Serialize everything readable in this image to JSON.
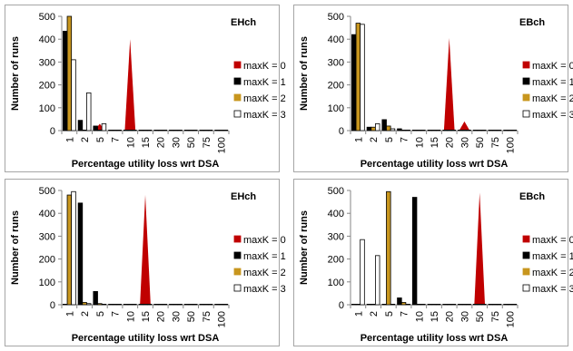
{
  "chart_data": [
    {
      "type": "bar",
      "title": "EHch",
      "xlabel": "Percentage utility loss wrt DSA",
      "ylabel": "Number of runs",
      "ylim": [
        0,
        500
      ],
      "yticks": [
        "0",
        "100",
        "200",
        "300",
        "400",
        "500"
      ],
      "categories": [
        "1",
        "2",
        "5",
        "7",
        "10",
        "15",
        "20",
        "30",
        "50",
        "75",
        "100"
      ],
      "legend_position": "right",
      "series": [
        {
          "name": "maxK = 0",
          "color": "#c00000",
          "style": "spike",
          "values": [
            0,
            0,
            30,
            0,
            400,
            0,
            0,
            0,
            0,
            0,
            0
          ]
        },
        {
          "name": "maxK = 1",
          "color": "#000000",
          "style": "bar",
          "values": [
            435,
            45,
            20,
            0,
            0,
            0,
            0,
            0,
            0,
            0,
            0
          ]
        },
        {
          "name": "maxK = 2",
          "color": "#c8961e",
          "style": "bar",
          "values": [
            500,
            0,
            0,
            0,
            0,
            0,
            0,
            0,
            0,
            0,
            0
          ]
        },
        {
          "name": "maxK = 3",
          "color": "#ffffff",
          "style": "bar",
          "values": [
            310,
            165,
            30,
            0,
            0,
            0,
            0,
            0,
            0,
            0,
            0
          ]
        }
      ]
    },
    {
      "type": "bar",
      "title": "EBch",
      "xlabel": "Percentage utility loss wrt DSA",
      "ylabel": "Number of runs",
      "ylim": [
        0,
        500
      ],
      "yticks": [
        "0",
        "100",
        "200",
        "300",
        "400",
        "500"
      ],
      "categories": [
        "1",
        "2",
        "5",
        "7",
        "10",
        "15",
        "20",
        "30",
        "50",
        "75",
        "100"
      ],
      "legend_position": "right",
      "series": [
        {
          "name": "maxK = 0",
          "color": "#c00000",
          "style": "spike",
          "values": [
            0,
            0,
            0,
            0,
            0,
            0,
            405,
            40,
            0,
            0,
            0
          ]
        },
        {
          "name": "maxK = 1",
          "color": "#000000",
          "style": "bar",
          "values": [
            420,
            15,
            48,
            8,
            0,
            0,
            0,
            0,
            0,
            0,
            0
          ]
        },
        {
          "name": "maxK = 2",
          "color": "#c8961e",
          "style": "bar",
          "values": [
            470,
            15,
            20,
            0,
            0,
            0,
            0,
            0,
            0,
            0,
            0
          ]
        },
        {
          "name": "maxK = 3",
          "color": "#ffffff",
          "style": "bar",
          "values": [
            465,
            30,
            8,
            0,
            0,
            0,
            0,
            0,
            0,
            0,
            0
          ]
        }
      ]
    },
    {
      "type": "bar",
      "title": "EHch",
      "xlabel": "Percentage utility loss wrt DSA",
      "ylabel": "Number of runs",
      "ylim": [
        0,
        500
      ],
      "yticks": [
        "0",
        "100",
        "200",
        "300",
        "400",
        "500"
      ],
      "categories": [
        "1",
        "2",
        "5",
        "7",
        "10",
        "15",
        "20",
        "30",
        "50",
        "75",
        "100"
      ],
      "legend_position": "right",
      "series": [
        {
          "name": "maxK = 0",
          "color": "#c00000",
          "style": "spike",
          "values": [
            0,
            0,
            0,
            0,
            0,
            480,
            0,
            0,
            0,
            0,
            0
          ]
        },
        {
          "name": "maxK = 1",
          "color": "#000000",
          "style": "bar",
          "values": [
            0,
            445,
            58,
            0,
            0,
            0,
            0,
            0,
            0,
            0,
            0
          ]
        },
        {
          "name": "maxK = 2",
          "color": "#c8961e",
          "style": "bar",
          "values": [
            480,
            10,
            5,
            0,
            0,
            0,
            0,
            0,
            0,
            0,
            0
          ]
        },
        {
          "name": "maxK = 3",
          "color": "#ffffff",
          "style": "bar",
          "values": [
            495,
            5,
            0,
            0,
            0,
            0,
            0,
            0,
            0,
            0,
            0
          ]
        }
      ]
    },
    {
      "type": "bar",
      "title": "EBch",
      "xlabel": "Percentage utility loss wrt DSA",
      "ylabel": "Number of runs",
      "ylim": [
        0,
        500
      ],
      "yticks": [
        "0",
        "100",
        "200",
        "300",
        "400",
        "500"
      ],
      "categories": [
        "1",
        "2",
        "5",
        "7",
        "10",
        "15",
        "20",
        "30",
        "50",
        "75",
        "100"
      ],
      "legend_position": "right",
      "series": [
        {
          "name": "maxK = 0",
          "color": "#c00000",
          "style": "spike",
          "values": [
            0,
            0,
            0,
            0,
            0,
            0,
            0,
            0,
            490,
            0,
            0
          ]
        },
        {
          "name": "maxK = 1",
          "color": "#000000",
          "style": "bar",
          "values": [
            0,
            0,
            0,
            30,
            470,
            0,
            0,
            0,
            0,
            0,
            0
          ]
        },
        {
          "name": "maxK = 2",
          "color": "#c8961e",
          "style": "bar",
          "values": [
            0,
            0,
            495,
            10,
            0,
            0,
            0,
            0,
            0,
            0,
            0
          ]
        },
        {
          "name": "maxK = 3",
          "color": "#ffffff",
          "style": "bar",
          "values": [
            285,
            215,
            0,
            0,
            0,
            0,
            0,
            0,
            0,
            0,
            0
          ]
        }
      ]
    }
  ]
}
